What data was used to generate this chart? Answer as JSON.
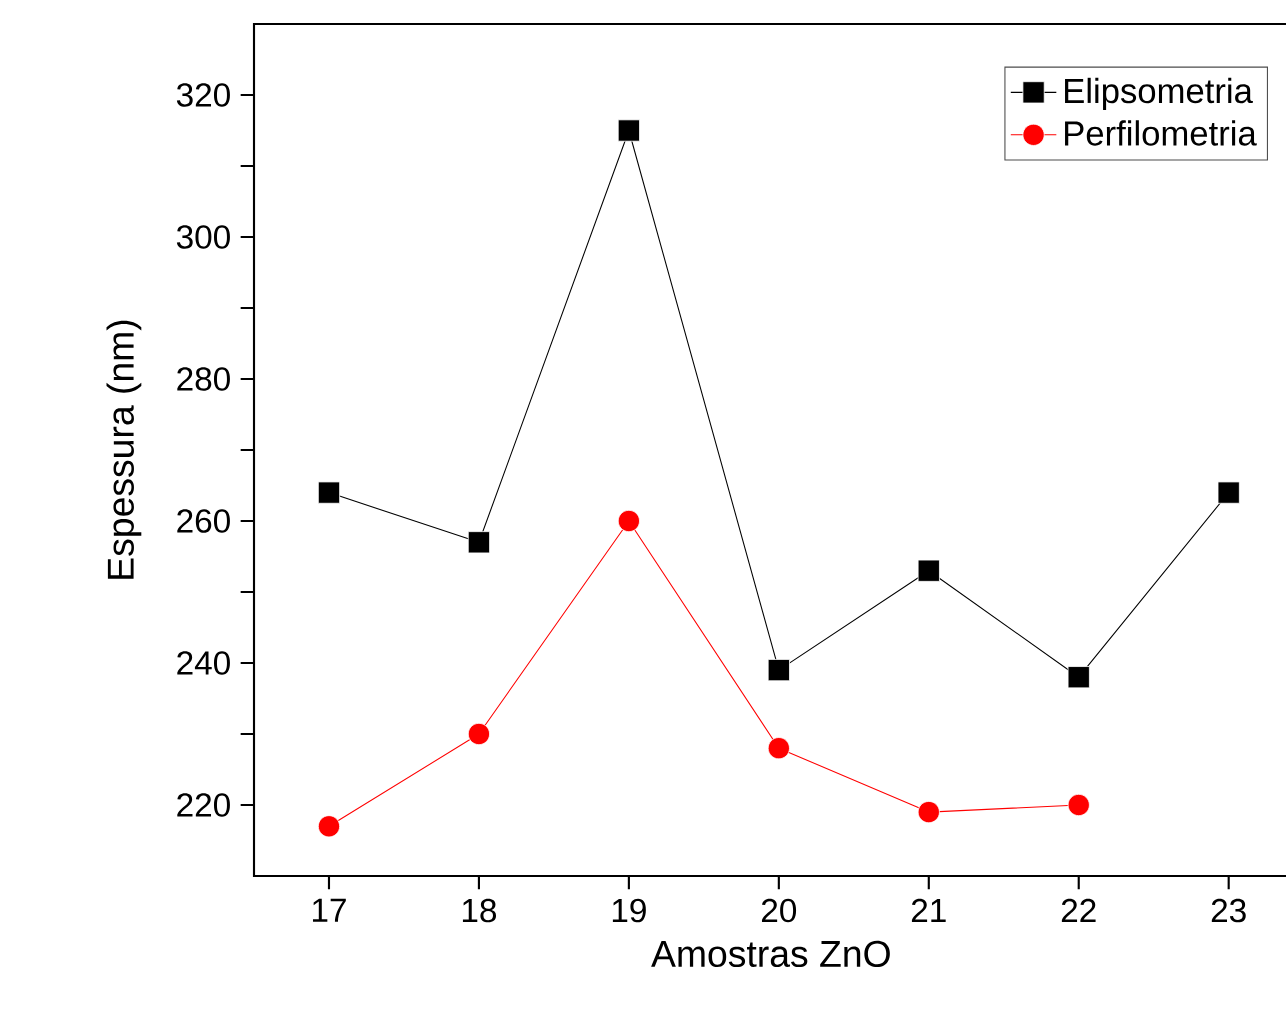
{
  "chart_data": {
    "type": "line",
    "xlabel": "Amostras ZnO",
    "ylabel": "Espessura (nm)",
    "x": [
      17,
      18,
      19,
      20,
      21,
      22,
      23
    ],
    "series": [
      {
        "name": "Elipsometria",
        "color": "#000000",
        "marker": "square",
        "values": [
          264,
          257,
          315,
          239,
          253,
          238,
          264
        ]
      },
      {
        "name": "Perfilometria",
        "color": "#ff0000",
        "marker": "circle",
        "values": [
          217,
          230,
          260,
          228,
          219,
          220,
          null
        ]
      }
    ],
    "xlim": [
      16.5,
      23.4
    ],
    "xticks": [
      17,
      18,
      19,
      20,
      21,
      22,
      23
    ],
    "ylim": [
      210,
      330
    ],
    "yticks": [
      220,
      {
        "value": 230,
        "label": null
      },
      240,
      {
        "value": 250,
        "label": null
      },
      260,
      {
        "value": 270,
        "label": null
      },
      280,
      {
        "value": 290,
        "label": null
      },
      300,
      {
        "value": 310,
        "label": null
      },
      320
    ],
    "grid": false,
    "legend": "top right",
    "line_style": "solid"
  }
}
